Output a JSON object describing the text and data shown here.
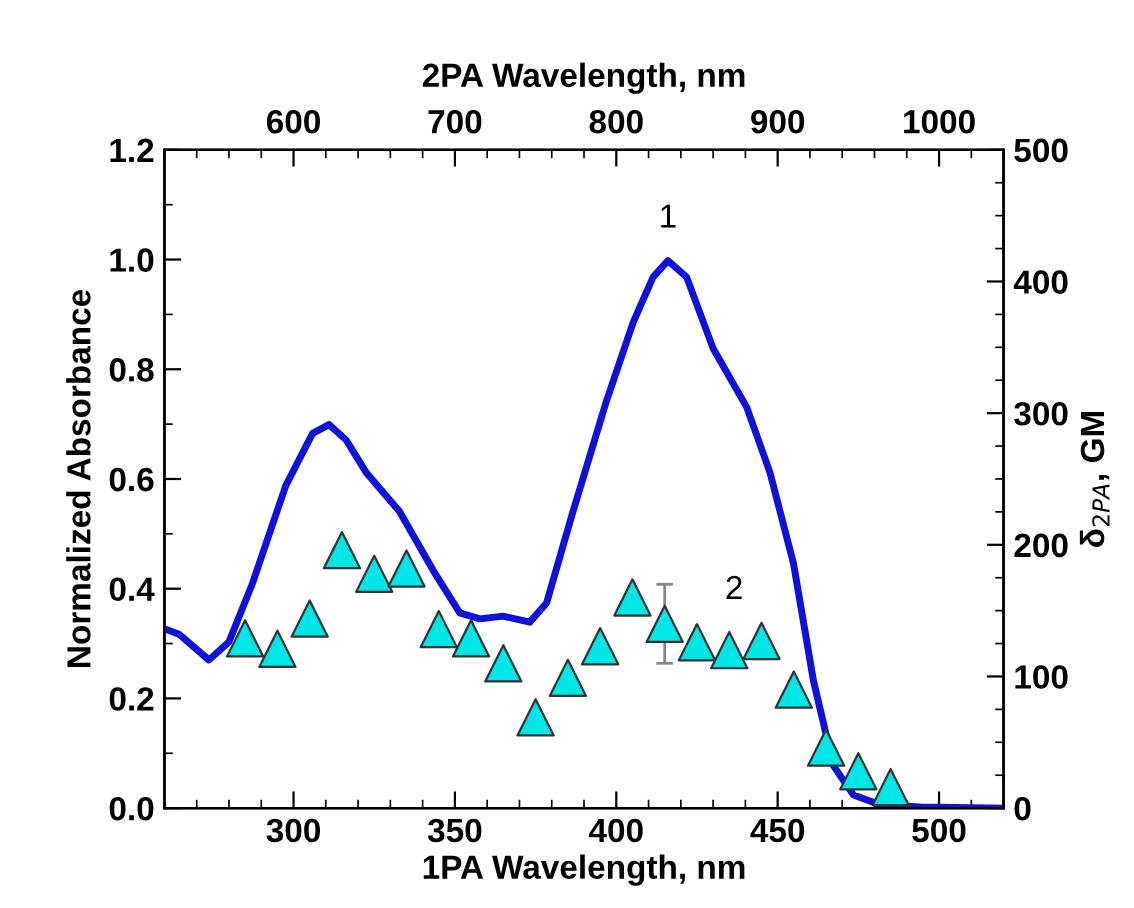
{
  "chart_data": {
    "type": "line",
    "xlabel": "1PA Wavelength, nm",
    "ylabel": "Normalized Absorbance",
    "y2label": "δ$_{2PA}$, GM",
    "x2label": "2PA Wavelength, nm",
    "xlim": [
      260,
      520
    ],
    "xticks": [
      300,
      350,
      400,
      450,
      500
    ],
    "ylim": [
      0,
      1.2
    ],
    "yticks": [
      {
        "value": 0,
        "label": "0.0"
      },
      {
        "value": 0.2,
        "label": "0.2"
      },
      {
        "value": 0.4,
        "label": "0.4"
      },
      {
        "value": 0.6,
        "label": "0.6"
      },
      {
        "value": 0.8,
        "label": "0.8"
      },
      {
        "value": 1.0,
        "label": "1.0"
      },
      {
        "value": 1.2,
        "label": "1.2"
      }
    ],
    "y2lim": [
      0,
      500
    ],
    "y2ticks": [
      0,
      100,
      200,
      300,
      400,
      500
    ],
    "x2lim": [
      520,
      1040
    ],
    "x2ticks": [
      600,
      700,
      800,
      900,
      1000
    ],
    "grid": false,
    "legend": false,
    "annotations": [
      "1",
      "2"
    ],
    "series": [
      {
        "color": "#1010e0",
        "marker": "none",
        "line_style": "solid",
        "x": [
          260,
          264.5,
          273.8,
          280,
          287.3,
          297.6,
          305.9,
          311,
          316.3,
          322.5,
          332.8,
          343.2,
          351.5,
          357.7,
          364.9,
          373.2,
          378.4,
          386.6,
          397,
          405.2,
          411.4,
          416,
          421.8,
          430,
          440.4,
          447.6,
          454.9,
          461.1,
          467.3,
          473.5,
          481.8,
          494.2,
          520
        ],
        "values": [
          0.327,
          0.317,
          0.27,
          0.303,
          0.41,
          0.588,
          0.683,
          0.699,
          0.671,
          0.612,
          0.541,
          0.434,
          0.356,
          0.345,
          0.35,
          0.339,
          0.374,
          0.541,
          0.743,
          0.885,
          0.968,
          0.998,
          0.968,
          0.838,
          0.731,
          0.612,
          0.446,
          0.232,
          0.077,
          0.024,
          0.006,
          0.002,
          0.0
        ]
      },
      {
        "type": "scatter",
        "axis": "y2",
        "color": "#00e5e5",
        "marker": "triangle",
        "x": [
          285,
          295,
          305,
          315,
          325,
          335,
          345,
          355,
          365,
          375,
          385,
          395,
          405,
          415,
          425,
          435,
          445,
          455,
          465,
          475,
          485
        ],
        "values": [
          129,
          121,
          144,
          196,
          178,
          182,
          136,
          129,
          110,
          69,
          99,
          123,
          160,
          140,
          126,
          120,
          127,
          90,
          46,
          28,
          16
        ],
        "errors": [
          null,
          null,
          null,
          null,
          null,
          null,
          null,
          null,
          null,
          null,
          null,
          null,
          null,
          30,
          null,
          null,
          null,
          null,
          null,
          null,
          null
        ]
      }
    ]
  }
}
